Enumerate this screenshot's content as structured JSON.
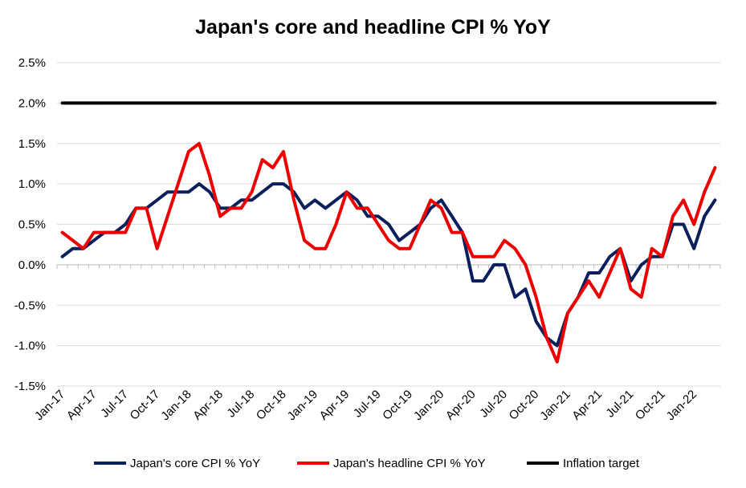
{
  "chart_data": {
    "type": "line",
    "title": "Japan's core and headline CPI % YoY",
    "xlabel": "",
    "ylabel": "",
    "ylim": [
      -1.5,
      2.5
    ],
    "y_ticks": [
      "2.5%",
      "2.0%",
      "1.5%",
      "1.0%",
      "0.5%",
      "0.0%",
      "-0.5%",
      "-1.0%",
      "-1.5%"
    ],
    "y_tick_values": [
      2.5,
      2.0,
      1.5,
      1.0,
      0.5,
      0.0,
      -0.5,
      -1.0,
      -1.5
    ],
    "grid": true,
    "legend_position": "bottom",
    "x": [
      "Jan-17",
      "Feb-17",
      "Mar-17",
      "Apr-17",
      "May-17",
      "Jun-17",
      "Jul-17",
      "Aug-17",
      "Sep-17",
      "Oct-17",
      "Nov-17",
      "Dec-17",
      "Jan-18",
      "Feb-18",
      "Mar-18",
      "Apr-18",
      "May-18",
      "Jun-18",
      "Jul-18",
      "Aug-18",
      "Sep-18",
      "Oct-18",
      "Nov-18",
      "Dec-18",
      "Jan-19",
      "Feb-19",
      "Mar-19",
      "Apr-19",
      "May-19",
      "Jun-19",
      "Jul-19",
      "Aug-19",
      "Sep-19",
      "Oct-19",
      "Nov-19",
      "Dec-19",
      "Jan-20",
      "Feb-20",
      "Mar-20",
      "Apr-20",
      "May-20",
      "Jun-20",
      "Jul-20",
      "Aug-20",
      "Sep-20",
      "Oct-20",
      "Nov-20",
      "Dec-20",
      "Jan-21",
      "Feb-21",
      "Mar-21",
      "Apr-21",
      "May-21",
      "Jun-21",
      "Jul-21",
      "Aug-21",
      "Sep-21",
      "Oct-21",
      "Nov-21",
      "Dec-21",
      "Jan-22",
      "Feb-22",
      "Mar-22"
    ],
    "x_tick_labels": [
      "Jan-17",
      "Apr-17",
      "Jul-17",
      "Oct-17",
      "Jan-18",
      "Apr-18",
      "Jul-18",
      "Oct-18",
      "Jan-19",
      "Apr-19",
      "Jul-19",
      "Oct-19",
      "Jan-20",
      "Apr-20",
      "Jul-20",
      "Oct-20",
      "Jan-21",
      "Apr-21",
      "Jul-21",
      "Oct-21",
      "Jan-22"
    ],
    "series": [
      {
        "name": "Japan's core CPI % YoY",
        "color": "#0b1f5c",
        "values": [
          0.1,
          0.2,
          0.2,
          0.3,
          0.4,
          0.4,
          0.5,
          0.7,
          0.7,
          0.8,
          0.9,
          0.9,
          0.9,
          1.0,
          0.9,
          0.7,
          0.7,
          0.8,
          0.8,
          0.9,
          1.0,
          1.0,
          0.9,
          0.7,
          0.8,
          0.7,
          0.8,
          0.9,
          0.8,
          0.6,
          0.6,
          0.5,
          0.3,
          0.4,
          0.5,
          0.7,
          0.8,
          0.6,
          0.4,
          -0.2,
          -0.2,
          0.0,
          0.0,
          -0.4,
          -0.3,
          -0.7,
          -0.9,
          -1.0,
          -0.6,
          -0.4,
          -0.1,
          -0.1,
          0.1,
          0.2,
          -0.2,
          0.0,
          0.1,
          0.1,
          0.5,
          0.5,
          0.2,
          0.6,
          0.8
        ]
      },
      {
        "name": "Japan's headline CPI % YoY",
        "color": "#ee0000",
        "values": [
          0.4,
          0.3,
          0.2,
          0.4,
          0.4,
          0.4,
          0.4,
          0.7,
          0.7,
          0.2,
          0.6,
          1.0,
          1.4,
          1.5,
          1.1,
          0.6,
          0.7,
          0.7,
          0.9,
          1.3,
          1.2,
          1.4,
          0.8,
          0.3,
          0.2,
          0.2,
          0.5,
          0.9,
          0.7,
          0.7,
          0.5,
          0.3,
          0.2,
          0.2,
          0.5,
          0.8,
          0.7,
          0.4,
          0.4,
          0.1,
          0.1,
          0.1,
          0.3,
          0.2,
          0.0,
          -0.4,
          -0.9,
          -1.2,
          -0.6,
          -0.4,
          -0.2,
          -0.4,
          -0.1,
          0.2,
          -0.3,
          -0.4,
          0.2,
          0.1,
          0.6,
          0.8,
          0.5,
          0.9,
          1.2
        ]
      },
      {
        "name": "Inflation target",
        "color": "#000000",
        "values": [
          2.0,
          2.0,
          2.0,
          2.0,
          2.0,
          2.0,
          2.0,
          2.0,
          2.0,
          2.0,
          2.0,
          2.0,
          2.0,
          2.0,
          2.0,
          2.0,
          2.0,
          2.0,
          2.0,
          2.0,
          2.0,
          2.0,
          2.0,
          2.0,
          2.0,
          2.0,
          2.0,
          2.0,
          2.0,
          2.0,
          2.0,
          2.0,
          2.0,
          2.0,
          2.0,
          2.0,
          2.0,
          2.0,
          2.0,
          2.0,
          2.0,
          2.0,
          2.0,
          2.0,
          2.0,
          2.0,
          2.0,
          2.0,
          2.0,
          2.0,
          2.0,
          2.0,
          2.0,
          2.0,
          2.0,
          2.0,
          2.0,
          2.0,
          2.0,
          2.0,
          2.0,
          2.0,
          2.0
        ]
      }
    ]
  }
}
